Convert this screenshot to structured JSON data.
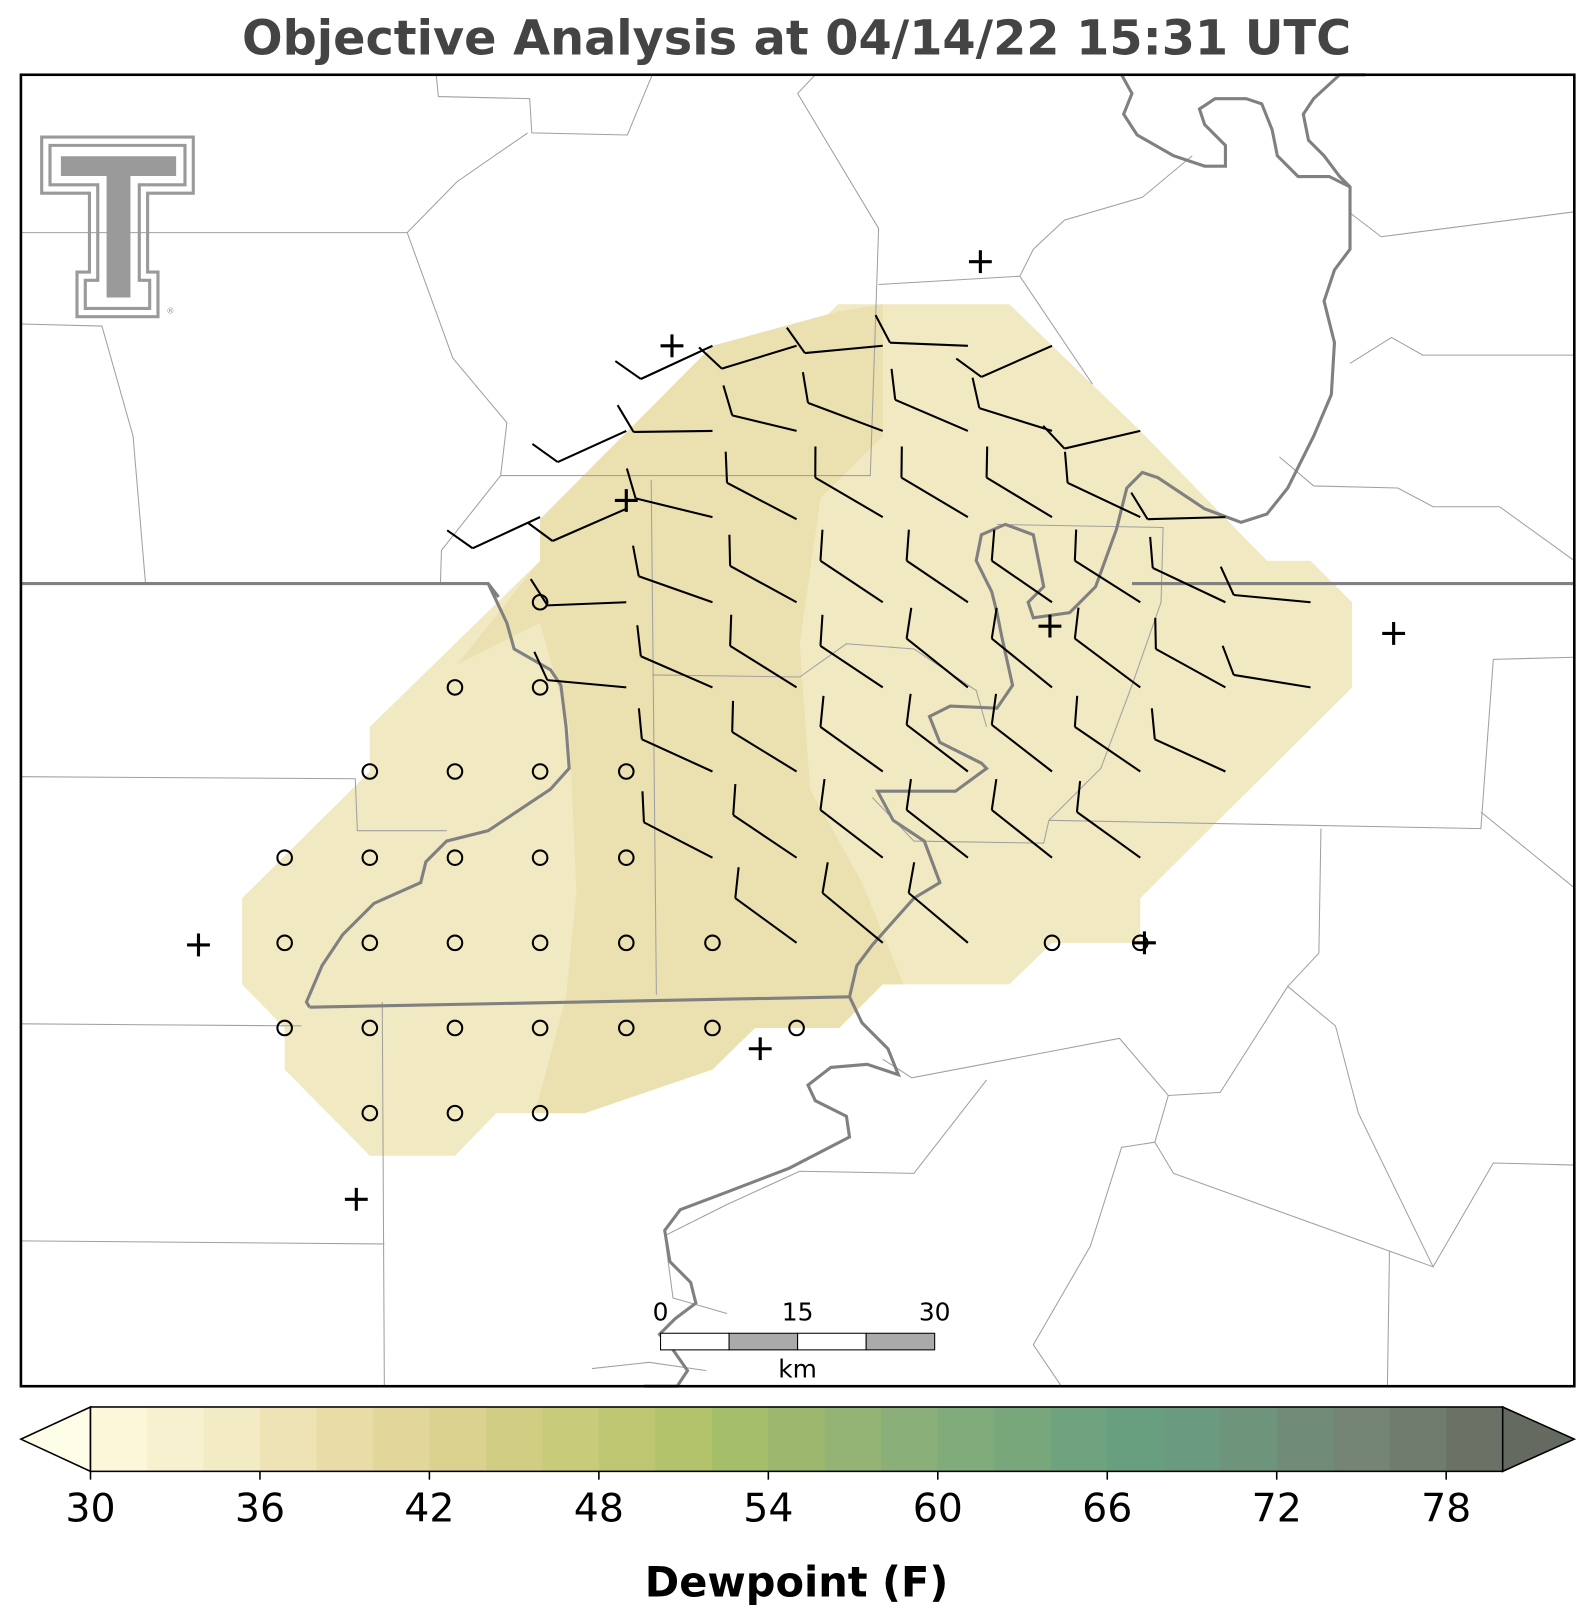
{
  "title": "Objective Analysis at 04/14/22 15:31 UTC",
  "colorbar": {
    "label": "Dewpoint (F)",
    "lim": [
      30,
      80
    ],
    "ticks": [
      30,
      36,
      42,
      48,
      54,
      60,
      66,
      72,
      78
    ],
    "colors": [
      "#fbf7d8",
      "#f7f1cf",
      "#f3ebc3",
      "#eee3b4",
      "#e9dca6",
      "#e3d69b",
      "#dbd28f",
      "#d1cd83",
      "#c8cb7a",
      "#bdc771",
      "#b2c36c",
      "#a5be6a",
      "#9cb86f",
      "#93b474",
      "#8aaf78",
      "#80ab7a",
      "#78a77c",
      "#6fa27e",
      "#68a07f",
      "#6a9a7f",
      "#6e947c",
      "#708c79",
      "#748575",
      "#707c6e",
      "#6a7266"
    ],
    "under_color": "#fefde8",
    "over_color": "#646a60"
  },
  "scale_bar": {
    "ticks": [
      0,
      15,
      30
    ],
    "lim": [
      0,
      30
    ],
    "unit": "km"
  }
}
